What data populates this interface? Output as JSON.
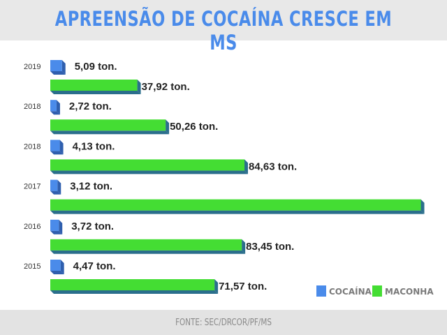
{
  "header": {
    "title": "APREENSÃO DE COCAÍNA CRESCE EM MS"
  },
  "footer": {
    "source": "FONTE: SEC/DRCOR/PF/MS"
  },
  "colors": {
    "cocaina": "#4a8bea",
    "cocaina_side": "#2f5fae",
    "maconha": "#44dd33",
    "maconha_side": "#2b6e8c"
  },
  "chart_data": {
    "type": "bar",
    "orientation": "horizontal",
    "title": "APREENSÃO DE COCAÍNA CRESCE EM MS",
    "categories": [
      "2019",
      "2018",
      "2018",
      "2017",
      "2016",
      "2015"
    ],
    "series": [
      {
        "name": "COCAÍNA",
        "values": [
          5.09,
          2.72,
          4.13,
          3.12,
          3.72,
          4.47
        ],
        "labels": [
          "5,09 ton.",
          "2,72 ton.",
          "4,13 ton.",
          "3,12 ton.",
          "3,72 ton.",
          "4,47 ton."
        ]
      },
      {
        "name": "MACONHA",
        "values": [
          37.92,
          50.26,
          84.63,
          161.5,
          83.45,
          71.57
        ],
        "labels": [
          "37,92 ton.",
          "50,26 ton.",
          "84,63 ton.",
          "",
          "83,45 ton.",
          "71,57 ton."
        ]
      }
    ],
    "legend": {
      "position": "bottom-right",
      "items": [
        "COCAÍNA",
        "MACONHA"
      ]
    },
    "grid": false
  }
}
